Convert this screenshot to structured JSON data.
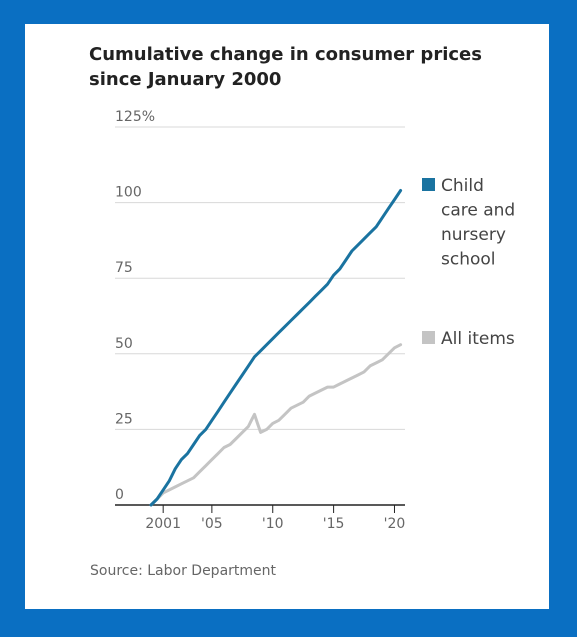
{
  "chart_data": {
    "type": "line",
    "title": "Cumulative change in consumer prices since January 2000",
    "source": "Source: Labor Department",
    "ylim": [
      0,
      125
    ],
    "xlim": [
      2000.0,
      2021.0
    ],
    "y_ticks": [
      {
        "value": 0,
        "label": "0"
      },
      {
        "value": 25,
        "label": "25"
      },
      {
        "value": 50,
        "label": "50"
      },
      {
        "value": 75,
        "label": "75"
      },
      {
        "value": 100,
        "label": "100"
      },
      {
        "value": 125,
        "label": "125%"
      }
    ],
    "x_ticks": [
      {
        "value": 2001,
        "label": "2001"
      },
      {
        "value": 2005,
        "label": "'05"
      },
      {
        "value": 2010,
        "label": "'10"
      },
      {
        "value": 2015,
        "label": "'15"
      },
      {
        "value": 2020,
        "label": "'20"
      }
    ],
    "grid": true,
    "legend": "right",
    "series": [
      {
        "name": "Child care and nursery school",
        "legend_lines": [
          "Child",
          "care and",
          "nursery",
          "school"
        ],
        "color": "#1a73a0",
        "x": [
          2000.0,
          2000.5,
          2001.0,
          2001.5,
          2002.0,
          2002.5,
          2003.0,
          2003.5,
          2004.0,
          2004.5,
          2005.0,
          2005.5,
          2006.0,
          2006.5,
          2007.0,
          2007.5,
          2008.0,
          2008.5,
          2009.0,
          2009.5,
          2010.0,
          2010.5,
          2011.0,
          2011.5,
          2012.0,
          2012.5,
          2013.0,
          2013.5,
          2014.0,
          2014.5,
          2015.0,
          2015.5,
          2016.0,
          2016.5,
          2017.0,
          2017.5,
          2018.0,
          2018.5,
          2019.0,
          2019.5,
          2020.0,
          2020.5
        ],
        "values": [
          0,
          2,
          5,
          8,
          12,
          15,
          17,
          20,
          23,
          25,
          28,
          31,
          34,
          37,
          40,
          43,
          46,
          49,
          51,
          53,
          55,
          57,
          59,
          61,
          63,
          65,
          67,
          69,
          71,
          73,
          76,
          78,
          81,
          84,
          86,
          88,
          90,
          92,
          95,
          98,
          101,
          104
        ]
      },
      {
        "name": "All items",
        "legend_lines": [
          "All items"
        ],
        "color": "#c4c4c4",
        "x": [
          2000.0,
          2000.5,
          2001.0,
          2001.5,
          2002.0,
          2002.5,
          2003.0,
          2003.5,
          2004.0,
          2004.5,
          2005.0,
          2005.5,
          2006.0,
          2006.5,
          2007.0,
          2007.5,
          2008.0,
          2008.25,
          2008.5,
          2008.75,
          2009.0,
          2009.5,
          2010.0,
          2010.5,
          2011.0,
          2011.5,
          2012.0,
          2012.5,
          2013.0,
          2013.5,
          2014.0,
          2014.5,
          2015.0,
          2015.5,
          2016.0,
          2016.5,
          2017.0,
          2017.5,
          2018.0,
          2018.5,
          2019.0,
          2019.5,
          2020.0,
          2020.5
        ],
        "values": [
          0,
          2,
          4,
          5,
          6,
          7,
          8,
          9,
          11,
          13,
          15,
          17,
          19,
          20,
          22,
          24,
          26,
          28,
          30,
          27,
          24,
          25,
          27,
          28,
          30,
          32,
          33,
          34,
          36,
          37,
          38,
          39,
          39,
          40,
          41,
          42,
          43,
          44,
          46,
          47,
          48,
          50,
          52,
          53
        ]
      }
    ]
  }
}
